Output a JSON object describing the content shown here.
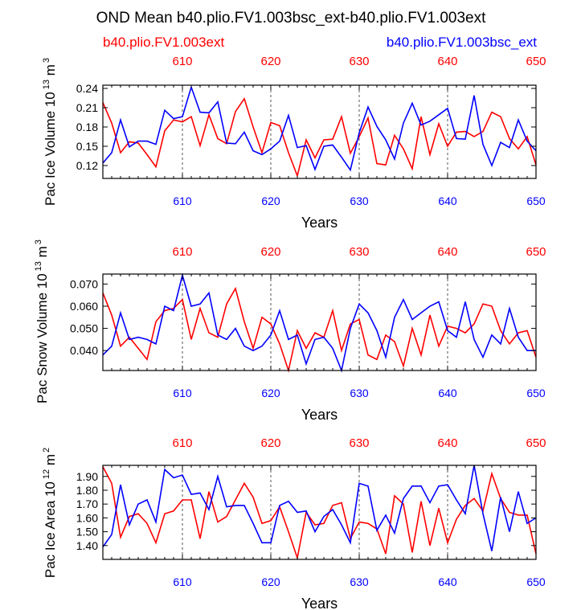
{
  "title": "OND Mean b40.plio.FV1.003bsc_ext-b40.plio.FV1.003ext",
  "legend": {
    "left": {
      "text": "b40.plio.FV1.003ext",
      "color": "#ff0000"
    },
    "right": {
      "text": "b40.plio.FV1.003bsc_ext",
      "color": "#0000ff"
    }
  },
  "colors": {
    "red": "#ff0000",
    "blue": "#0000ff",
    "axis": "#000000"
  },
  "chart_data": [
    {
      "type": "line",
      "ylabel": "Pac Ice Volume 10",
      "ylabel_sup": "13",
      "ylabel_tail": " m",
      "ylabel_sup2": "3",
      "xlabel": "Years",
      "xlim": [
        601,
        650
      ],
      "ylim": [
        0.1,
        0.245
      ],
      "yticks": [
        0.12,
        0.15,
        0.18,
        0.21,
        0.24
      ],
      "ytick_labels": [
        "0.12",
        "0.15",
        "0.18",
        "0.21",
        "0.24"
      ],
      "xticks": [
        610,
        620,
        630,
        640,
        650
      ],
      "xtick_labels": [
        "610",
        "620",
        "630",
        "640",
        "650"
      ],
      "top_xtick_labels": [
        "610",
        "620",
        "630",
        "640",
        "650"
      ],
      "grid": "dashed vertical at 610, 620, 630, 640",
      "x": [
        601,
        602,
        603,
        604,
        605,
        606,
        607,
        608,
        609,
        610,
        611,
        612,
        613,
        614,
        615,
        616,
        617,
        618,
        619,
        620,
        621,
        622,
        623,
        624,
        625,
        626,
        627,
        628,
        629,
        630,
        631,
        632,
        633,
        634,
        635,
        636,
        637,
        638,
        639,
        640,
        641,
        642,
        643,
        644,
        645,
        646,
        647,
        648,
        649,
        650
      ],
      "series": [
        {
          "name": "b40.plio.FV1.003ext",
          "color": "#ff0000",
          "values": [
            0.218,
            0.186,
            0.14,
            0.157,
            0.155,
            0.137,
            0.118,
            0.174,
            0.191,
            0.188,
            0.196,
            0.151,
            0.199,
            0.162,
            0.154,
            0.204,
            0.224,
            0.18,
            0.14,
            0.187,
            0.182,
            0.14,
            0.104,
            0.16,
            0.132,
            0.16,
            0.161,
            0.196,
            0.139,
            0.165,
            0.194,
            0.123,
            0.121,
            0.167,
            0.146,
            0.115,
            0.196,
            0.137,
            0.185,
            0.15,
            0.172,
            0.173,
            0.165,
            0.173,
            0.203,
            0.196,
            0.162,
            0.146,
            0.165,
            0.121
          ]
        },
        {
          "name": "b40.plio.FV1.003bsc_ext",
          "color": "#0000ff",
          "values": [
            0.124,
            0.14,
            0.191,
            0.149,
            0.158,
            0.158,
            0.153,
            0.206,
            0.193,
            0.196,
            0.242,
            0.203,
            0.202,
            0.219,
            0.155,
            0.154,
            0.172,
            0.143,
            0.137,
            0.146,
            0.158,
            0.198,
            0.148,
            0.151,
            0.114,
            0.15,
            0.152,
            0.133,
            0.113,
            0.171,
            0.211,
            0.181,
            0.16,
            0.13,
            0.186,
            0.217,
            0.183,
            0.189,
            0.199,
            0.209,
            0.162,
            0.161,
            0.229,
            0.153,
            0.12,
            0.156,
            0.148,
            0.191,
            0.158,
            0.143
          ]
        }
      ]
    },
    {
      "type": "line",
      "ylabel": "Pac Snow Volume 10",
      "ylabel_sup": "13",
      "ylabel_tail": " m",
      "ylabel_sup2": "3",
      "xlabel": "Years",
      "xlim": [
        601,
        650
      ],
      "ylim": [
        0.031,
        0.0745
      ],
      "yticks": [
        0.04,
        0.05,
        0.06,
        0.07
      ],
      "ytick_labels": [
        "0.040",
        "0.050",
        "0.060",
        "0.070"
      ],
      "xticks": [
        610,
        620,
        630,
        640,
        650
      ],
      "xtick_labels": [
        "610",
        "620",
        "630",
        "640",
        "650"
      ],
      "top_xtick_labels": [
        "610",
        "620",
        "630",
        "640",
        "650"
      ],
      "grid": "dashed vertical at 610, 620, 630, 640",
      "x": [
        601,
        602,
        603,
        604,
        605,
        606,
        607,
        608,
        609,
        610,
        611,
        612,
        613,
        614,
        615,
        616,
        617,
        618,
        619,
        620,
        621,
        622,
        623,
        624,
        625,
        626,
        627,
        628,
        629,
        630,
        631,
        632,
        633,
        634,
        635,
        636,
        637,
        638,
        639,
        640,
        641,
        642,
        643,
        644,
        645,
        646,
        647,
        648,
        649,
        650
      ],
      "series": [
        {
          "name": "b40.plio.FV1.003ext",
          "color": "#ff0000",
          "values": [
            0.066,
            0.056,
            0.042,
            0.046,
            0.041,
            0.036,
            0.053,
            0.058,
            0.059,
            0.063,
            0.045,
            0.059,
            0.048,
            0.046,
            0.061,
            0.068,
            0.053,
            0.041,
            0.055,
            0.052,
            0.043,
            0.031,
            0.049,
            0.041,
            0.048,
            0.046,
            0.058,
            0.04,
            0.052,
            0.054,
            0.038,
            0.036,
            0.047,
            0.044,
            0.033,
            0.05,
            0.038,
            0.056,
            0.042,
            0.051,
            0.05,
            0.048,
            0.052,
            0.061,
            0.06,
            0.049,
            0.043,
            0.048,
            0.049,
            0.037
          ]
        },
        {
          "name": "b40.plio.FV1.003bsc_ext",
          "color": "#0000ff",
          "values": [
            0.038,
            0.042,
            0.057,
            0.045,
            0.046,
            0.045,
            0.043,
            0.06,
            0.058,
            0.074,
            0.06,
            0.061,
            0.066,
            0.047,
            0.045,
            0.05,
            0.042,
            0.04,
            0.042,
            0.047,
            0.058,
            0.045,
            0.047,
            0.034,
            0.045,
            0.046,
            0.041,
            0.031,
            0.05,
            0.061,
            0.057,
            0.049,
            0.037,
            0.055,
            0.063,
            0.054,
            0.057,
            0.06,
            0.062,
            0.049,
            0.046,
            0.062,
            0.045,
            0.037,
            0.047,
            0.043,
            0.059,
            0.046,
            0.04,
            0.04
          ]
        }
      ]
    },
    {
      "type": "line",
      "ylabel": "Pac Ice Area 10",
      "ylabel_sup": "12",
      "ylabel_tail": " m",
      "ylabel_sup2": "2",
      "xlabel": "Years",
      "xlim": [
        601,
        650
      ],
      "ylim": [
        1.3,
        1.98
      ],
      "yticks": [
        1.4,
        1.5,
        1.6,
        1.7,
        1.8,
        1.9
      ],
      "ytick_labels": [
        "1.40",
        "1.50",
        "1.60",
        "1.70",
        "1.80",
        "1.90"
      ],
      "xticks": [
        610,
        620,
        630,
        640,
        650
      ],
      "xtick_labels": [
        "610",
        "620",
        "630",
        "640",
        "650"
      ],
      "top_xtick_labels": [
        "610",
        "620",
        "630",
        "640",
        "650"
      ],
      "grid": "dashed vertical at 610, 620, 630, 640",
      "x": [
        601,
        602,
        603,
        604,
        605,
        606,
        607,
        608,
        609,
        610,
        611,
        612,
        613,
        614,
        615,
        616,
        617,
        618,
        619,
        620,
        621,
        622,
        623,
        624,
        625,
        626,
        627,
        628,
        629,
        630,
        631,
        632,
        633,
        634,
        635,
        636,
        637,
        638,
        639,
        640,
        641,
        642,
        643,
        644,
        645,
        646,
        647,
        648,
        649,
        650
      ],
      "series": [
        {
          "name": "b40.plio.FV1.003ext",
          "color": "#ff0000",
          "values": [
            1.97,
            1.85,
            1.46,
            1.61,
            1.63,
            1.56,
            1.42,
            1.63,
            1.65,
            1.73,
            1.73,
            1.45,
            1.79,
            1.57,
            1.61,
            1.73,
            1.85,
            1.75,
            1.56,
            1.58,
            1.68,
            1.5,
            1.31,
            1.64,
            1.55,
            1.56,
            1.69,
            1.71,
            1.45,
            1.57,
            1.56,
            1.52,
            1.34,
            1.76,
            1.7,
            1.35,
            1.72,
            1.4,
            1.67,
            1.42,
            1.59,
            1.69,
            1.74,
            1.65,
            1.92,
            1.74,
            1.64,
            1.62,
            1.62,
            1.34
          ]
        },
        {
          "name": "b40.plio.FV1.003bsc_ext",
          "color": "#0000ff",
          "values": [
            1.39,
            1.48,
            1.84,
            1.55,
            1.7,
            1.73,
            1.57,
            1.95,
            1.89,
            1.91,
            1.77,
            1.78,
            1.66,
            1.9,
            1.68,
            1.69,
            1.69,
            1.56,
            1.42,
            1.42,
            1.69,
            1.72,
            1.64,
            1.65,
            1.5,
            1.61,
            1.66,
            1.55,
            1.42,
            1.85,
            1.83,
            1.51,
            1.62,
            1.49,
            1.74,
            1.83,
            1.83,
            1.71,
            1.83,
            1.84,
            1.73,
            1.63,
            1.98,
            1.63,
            1.36,
            1.75,
            1.5,
            1.79,
            1.56,
            1.6
          ]
        }
      ]
    }
  ]
}
